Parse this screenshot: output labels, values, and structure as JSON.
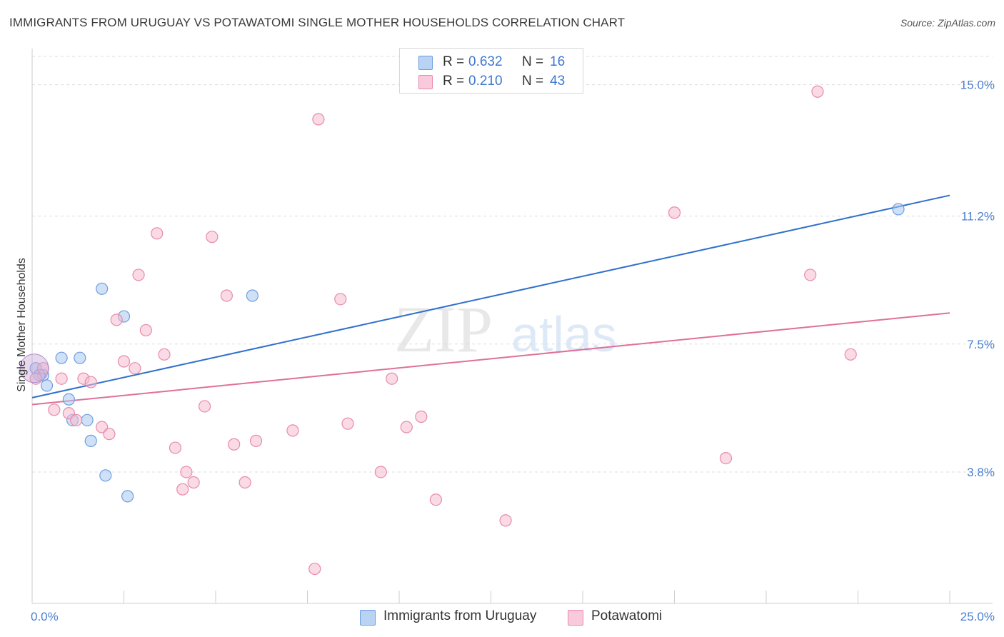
{
  "title": "IMMIGRANTS FROM URUGUAY VS POTAWATOMI SINGLE MOTHER HOUSEHOLDS CORRELATION CHART",
  "source": "Source: ZipAtlas.com",
  "watermark": {
    "zip": "ZIP",
    "atlas": "atlas"
  },
  "legend": {
    "rows": [
      {
        "r_label": "R =",
        "r_value": "0.632",
        "n_label": "N =",
        "n_value": "16"
      },
      {
        "r_label": "R =",
        "r_value": "0.210",
        "n_label": "N =",
        "n_value": "43"
      }
    ]
  },
  "bottom_legend": [
    {
      "label": "Immigrants from Uruguay"
    },
    {
      "label": "Potawatomi"
    }
  ],
  "colors": {
    "blue_fill": "#aac8f0",
    "blue_stroke": "#6d9de0",
    "blue_line": "#3070cc",
    "pink_fill": "#f6bcd0",
    "pink_stroke": "#e88aaa",
    "pink_line": "#e07098",
    "tick_text": "#4a7fd0",
    "grid": "#dddddd"
  },
  "chart_data": {
    "type": "scatter",
    "title": "IMMIGRANTS FROM URUGUAY VS POTAWATOMI SINGLE MOTHER HOUSEHOLDS CORRELATION CHART",
    "xlabel": "",
    "ylabel": "Single Mother Households",
    "xlim": [
      0,
      25
    ],
    "ylim": [
      0,
      15.9
    ],
    "x_ticks": [
      "0.0%",
      "25.0%"
    ],
    "y_ticks": [
      {
        "value": 3.8,
        "label": "3.8%"
      },
      {
        "value": 7.5,
        "label": "7.5%"
      },
      {
        "value": 11.2,
        "label": "11.2%"
      },
      {
        "value": 15.0,
        "label": "15.0%"
      }
    ],
    "grid": true,
    "legend_position": "top-center",
    "series": [
      {
        "name": "Immigrants from Uruguay",
        "color": "#6d9de0",
        "points": [
          [
            0.1,
            6.8
          ],
          [
            0.3,
            6.6
          ],
          [
            0.4,
            6.3
          ],
          [
            0.8,
            7.1
          ],
          [
            1.0,
            5.9
          ],
          [
            1.1,
            5.3
          ],
          [
            1.3,
            7.1
          ],
          [
            1.5,
            5.3
          ],
          [
            1.6,
            4.7
          ],
          [
            1.9,
            9.1
          ],
          [
            2.0,
            3.7
          ],
          [
            2.5,
            8.3
          ],
          [
            2.6,
            3.1
          ],
          [
            6.0,
            8.9
          ],
          [
            23.6,
            11.4
          ],
          [
            0.2,
            6.6
          ]
        ],
        "trend": [
          [
            0,
            5.95
          ],
          [
            25,
            11.8
          ]
        ]
      },
      {
        "name": "Potawatomi",
        "color": "#e88aaa",
        "points": [
          [
            0.3,
            6.8
          ],
          [
            0.6,
            5.6
          ],
          [
            0.8,
            6.5
          ],
          [
            1.0,
            5.5
          ],
          [
            1.2,
            5.3
          ],
          [
            1.4,
            6.5
          ],
          [
            1.6,
            6.4
          ],
          [
            1.9,
            5.1
          ],
          [
            2.1,
            4.9
          ],
          [
            2.3,
            8.2
          ],
          [
            2.5,
            7.0
          ],
          [
            2.8,
            6.8
          ],
          [
            2.9,
            9.5
          ],
          [
            3.1,
            7.9
          ],
          [
            3.4,
            10.7
          ],
          [
            3.6,
            7.2
          ],
          [
            3.9,
            4.5
          ],
          [
            4.1,
            3.3
          ],
          [
            4.2,
            3.8
          ],
          [
            4.4,
            3.5
          ],
          [
            4.7,
            5.7
          ],
          [
            4.9,
            10.6
          ],
          [
            5.3,
            8.9
          ],
          [
            5.5,
            4.6
          ],
          [
            5.8,
            3.5
          ],
          [
            6.1,
            4.7
          ],
          [
            7.1,
            5.0
          ],
          [
            7.7,
            1.0
          ],
          [
            7.8,
            14.0
          ],
          [
            8.4,
            8.8
          ],
          [
            8.6,
            5.2
          ],
          [
            9.5,
            3.8
          ],
          [
            9.8,
            6.5
          ],
          [
            10.2,
            5.1
          ],
          [
            10.6,
            5.4
          ],
          [
            11.0,
            3.0
          ],
          [
            12.9,
            2.4
          ],
          [
            17.5,
            11.3
          ],
          [
            18.9,
            4.2
          ],
          [
            21.2,
            9.5
          ],
          [
            21.4,
            14.8
          ],
          [
            22.3,
            7.2
          ],
          [
            0.1,
            6.5
          ]
        ],
        "trend": [
          [
            0,
            5.75
          ],
          [
            25,
            8.4
          ]
        ]
      }
    ]
  }
}
